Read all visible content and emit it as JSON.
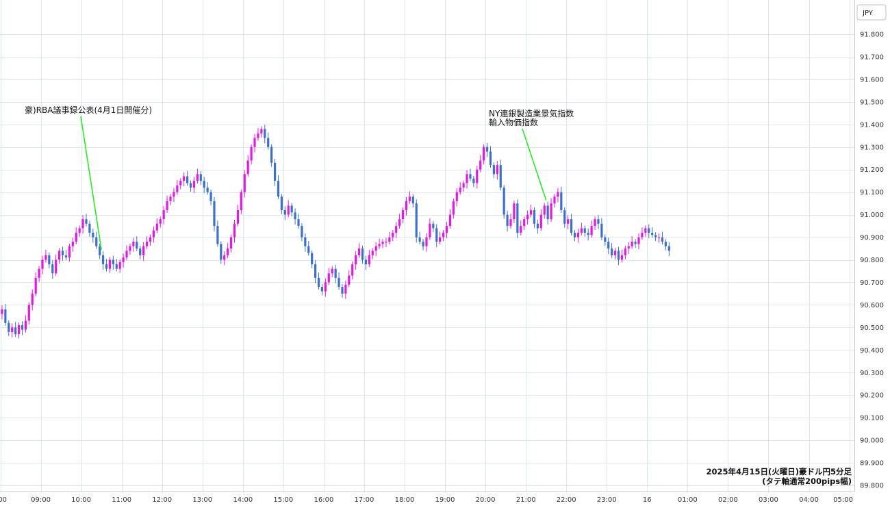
{
  "chart_data": {
    "type": "candlestick",
    "currency_badge": "JPY",
    "caption": [
      "2025年4月15日(火曜日)豪ドル円5分足",
      "(タテ軸通常200pips幅)"
    ],
    "y_ticks": [
      "91.800",
      "91.700",
      "91.600",
      "91.500",
      "91.400",
      "91.300",
      "91.200",
      "91.100",
      "91.000",
      "90.900",
      "90.800",
      "90.700",
      "90.600",
      "90.500",
      "90.400",
      "90.300",
      "90.200",
      "90.100",
      "90.000",
      "89.900",
      "89.800"
    ],
    "ylim": [
      89.8,
      91.8
    ],
    "x_ticks": [
      "00",
      "09:00",
      "10:00",
      "11:00",
      "12:00",
      "13:00",
      "14:00",
      "15:00",
      "16:00",
      "17:00",
      "18:00",
      "19:00",
      "20:00",
      "21:00",
      "22:00",
      "23:00",
      "16",
      "01:00",
      "02:00",
      "03:00",
      "04:00",
      "05:00"
    ],
    "start_time": "08:00",
    "interval_minutes": 5,
    "closes": [
      90.56,
      90.58,
      90.52,
      90.48,
      90.5,
      90.47,
      90.51,
      90.49,
      90.53,
      90.6,
      90.65,
      90.72,
      90.76,
      90.8,
      90.82,
      90.78,
      90.74,
      90.8,
      90.84,
      90.82,
      90.81,
      90.86,
      90.88,
      90.92,
      90.94,
      90.98,
      90.96,
      90.92,
      90.9,
      90.86,
      90.82,
      90.78,
      90.76,
      90.8,
      90.78,
      90.76,
      90.79,
      90.81,
      90.84,
      90.86,
      90.88,
      90.85,
      90.82,
      90.86,
      90.88,
      90.9,
      90.93,
      90.96,
      90.98,
      91.02,
      91.06,
      91.08,
      91.1,
      91.13,
      91.15,
      91.17,
      91.14,
      91.12,
      91.15,
      91.18,
      91.15,
      91.12,
      91.1,
      91.06,
      90.95,
      90.87,
      90.8,
      90.82,
      90.85,
      90.9,
      90.96,
      91.02,
      91.1,
      91.18,
      91.24,
      91.3,
      91.34,
      91.36,
      91.38,
      91.34,
      91.3,
      91.23,
      91.15,
      91.08,
      91.02,
      91.0,
      91.04,
      91.01,
      90.98,
      90.95,
      90.9,
      90.86,
      90.83,
      90.78,
      90.72,
      90.68,
      90.66,
      90.7,
      90.74,
      90.76,
      90.72,
      90.68,
      90.65,
      90.69,
      90.73,
      90.78,
      90.82,
      90.85,
      90.8,
      90.78,
      90.82,
      90.84,
      90.86,
      90.87,
      90.88,
      90.88,
      90.9,
      90.92,
      90.95,
      90.98,
      91.02,
      91.06,
      91.08,
      91.05,
      90.9,
      90.88,
      90.86,
      90.9,
      90.96,
      90.94,
      90.88,
      90.9,
      90.92,
      90.95,
      91.0,
      91.06,
      91.1,
      91.12,
      91.14,
      91.18,
      91.16,
      91.14,
      91.2,
      91.24,
      91.3,
      91.28,
      91.22,
      91.18,
      91.22,
      91.12,
      91.0,
      90.95,
      90.98,
      91.05,
      90.92,
      90.95,
      90.98,
      91.0,
      91.02,
      90.96,
      90.94,
      91.0,
      91.04,
      90.98,
      91.05,
      91.08,
      91.1,
      91.02,
      90.96,
      90.98,
      90.92,
      90.9,
      90.92,
      90.94,
      90.92,
      90.91,
      90.95,
      90.98,
      90.96,
      90.9,
      90.88,
      90.85,
      90.82,
      90.84,
      90.8,
      90.82,
      90.85,
      90.86,
      90.88,
      90.87,
      90.9,
      90.92,
      90.94,
      90.92,
      90.91,
      90.9,
      90.9,
      90.88,
      90.86,
      90.84
    ],
    "annotations": [
      {
        "lines": [
          "豪)RBA議事録公表(4月1日開催分)"
        ],
        "time": "10:30"
      },
      {
        "lines": [
          "NY連銀製造業景気指数",
          "輸入物価指数"
        ],
        "time": "21:30"
      }
    ],
    "colors": {
      "up": "#e815e8",
      "down": "#3a6fd6",
      "grid": "#dbe8ee",
      "annotation_line": "#22ee22"
    }
  }
}
